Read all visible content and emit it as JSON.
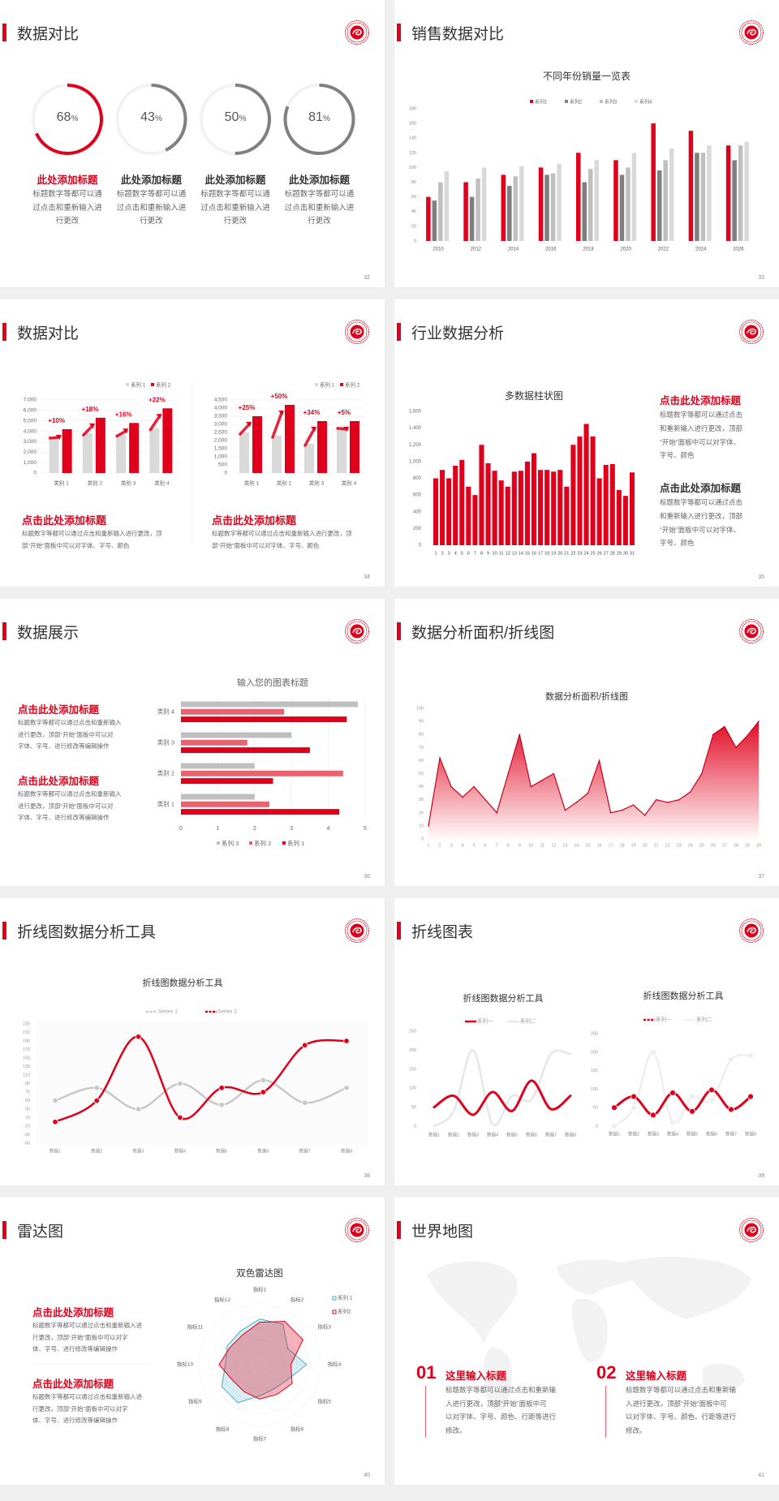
{
  "colors": {
    "accent": "#e0001b",
    "gray_dark": "#7f7f7f",
    "gray_mid": "#bfbfbf",
    "gray_light": "#d9d9d9",
    "pink": "#e8636f",
    "radar_blue": "#4bacc6"
  },
  "logo_icon": "red-circular-emblem",
  "s32": {
    "title": "数据对比",
    "page": "32",
    "rings": [
      {
        "value": 68,
        "unit": "%",
        "title": "此处添加标题",
        "body": [
          "标题数字等都可以通",
          "过点击和重新输入进",
          "行更改"
        ],
        "highlight": true
      },
      {
        "value": 43,
        "unit": "%",
        "title": "此处添加标题",
        "body": [
          "标题数字等都可以通",
          "过点击和重新输入进",
          "行更改"
        ],
        "highlight": false
      },
      {
        "value": 50,
        "unit": "%",
        "title": "此处添加标题",
        "body": [
          "标题数字等都可以通",
          "过点击和重新输入进",
          "行更改"
        ],
        "highlight": false
      },
      {
        "value": 81,
        "unit": "%",
        "title": "此处添加标题",
        "body": [
          "标题数字等都可以通",
          "过点击和重新输入进",
          "行更改"
        ],
        "highlight": false
      }
    ]
  },
  "s33": {
    "title": "销售数据对比",
    "page": "33"
  },
  "s34": {
    "title": "数据对比",
    "page": "34",
    "blocks": [
      {
        "heading": "点击此处添加标题",
        "body": [
          "标题数字等都可以通过点击和重新输入进行更改，顶",
          "部“开始”面板中可以对字体、字号、颜色"
        ]
      },
      {
        "heading": "点击此处添加标题",
        "body": [
          "标题数字等都可以通过点击和重新输入进行更改，顶",
          "部“开始”面板中可以对字体、字号、颜色"
        ]
      }
    ]
  },
  "s35": {
    "title": "行业数据分析",
    "page": "35",
    "blocks": [
      {
        "heading": "点击此处添加标题",
        "body": [
          "标题数字等都可以通过点击",
          "和重新输入进行更改，顶部",
          "“开始”面板中可以对字体、",
          "字号、颜色"
        ],
        "red": true
      },
      {
        "heading": "点击此处添加标题",
        "body": [
          "标题数字等都可以通过点击",
          "和重新输入进行更改，顶部",
          "“开始”面板中可以对字体、",
          "字号、颜色"
        ],
        "red": false
      }
    ]
  },
  "s36": {
    "title": "数据展示",
    "page": "36",
    "blocks": [
      {
        "heading": "点击此处添加标题",
        "body": [
          "标题数字等都可以通过点击和重新输入",
          "进行更改，顶部“开始”面板中可以对",
          "字体、字号、进行修改等编辑操作"
        ]
      },
      {
        "heading": "点击此处添加标题",
        "body": [
          "标题数字等都可以通过点击和重新输入",
          "进行更改，顶部“开始”面板中可以对",
          "字体、字号、进行修改等编辑操作"
        ]
      }
    ]
  },
  "s37": {
    "title": "数据分析面积/折线图",
    "page": "37"
  },
  "s38": {
    "title": "折线图数据分析工具",
    "page": "38"
  },
  "s39": {
    "title": "折线图表",
    "page": "39"
  },
  "s40": {
    "title": "雷达图",
    "page": "40",
    "blocks": [
      {
        "heading": "点击此处添加标题",
        "body": [
          "标题数字等都可以通过点击和重新输入进",
          "行更改，顶部“开始”面板中可以对字",
          "体、字号、进行修改等编辑操作"
        ]
      },
      {
        "heading": "点击此处添加标题",
        "body": [
          "标题数字等都可以通过点击和重新输入进",
          "行更改，顶部“开始”面板中可以对字",
          "体、字号、进行修改等编辑操作"
        ]
      }
    ]
  },
  "s41": {
    "title": "世界地图",
    "page": "41",
    "items": [
      {
        "number": "01",
        "heading": "这里输入标题",
        "body": [
          "标题数字等都可以通过点击和重新输",
          "入进行更改，顶部“开始”面板中可",
          "以对字体、字号、颜色、行距等进行",
          "修改。"
        ]
      },
      {
        "number": "02",
        "heading": "这里输入标题",
        "body": [
          "标题数字等都可以通过点击和重新输",
          "入进行更改，顶部“开始”面板中可",
          "以对字体、字号、颜色、行距等进行",
          "修改。"
        ]
      }
    ]
  },
  "chart_data": [
    {
      "type": "bar",
      "title": "不同年份销量一览表",
      "categories": [
        "2010",
        "2012",
        "2014",
        "2016",
        "2018",
        "2020",
        "2022",
        "2024",
        "2026"
      ],
      "series": [
        {
          "name": "系列1",
          "color": "#e0001b",
          "values": [
            60,
            80,
            90,
            100,
            120,
            110,
            160,
            150,
            130
          ]
        },
        {
          "name": "系列2",
          "color": "#7f7f7f",
          "values": [
            55,
            60,
            75,
            90,
            80,
            90,
            96,
            120,
            110
          ]
        },
        {
          "name": "系列3",
          "color": "#bfbfbf",
          "values": [
            80,
            85,
            88,
            92,
            98,
            100,
            110,
            120,
            130
          ]
        },
        {
          "name": "系列4",
          "color": "#d9d9d9",
          "values": [
            95,
            100,
            102,
            105,
            110,
            120,
            126,
            130,
            135
          ]
        }
      ],
      "yticks": [
        0,
        20,
        40,
        60,
        80,
        100,
        120,
        140,
        160,
        180
      ],
      "ylim": [
        0,
        180
      ],
      "legend": "top"
    },
    {
      "type": "bar",
      "categories": [
        "类别 1",
        "类别 2",
        "类别 3",
        "类别 4"
      ],
      "series": [
        {
          "name": "系列 1",
          "color": "#d9d9d9",
          "values": [
            3500,
            3800,
            3700,
            4300
          ]
        },
        {
          "name": "系列 2",
          "color": "#e0001b",
          "values": [
            4200,
            5300,
            4800,
            6200
          ]
        }
      ],
      "annotations": [
        "+10%",
        "+18%",
        "+16%",
        "+22%"
      ],
      "yticks": [
        "0",
        "1,000",
        "2,000",
        "3,000",
        "4,000",
        "5,000",
        "6,000",
        "7,000"
      ],
      "ylim": [
        0,
        7000
      ],
      "legend": "top-right",
      "grid": true
    },
    {
      "type": "bar",
      "categories": [
        "类别 1",
        "类别 2",
        "类别 3",
        "类别 4"
      ],
      "series": [
        {
          "name": "系列 1",
          "color": "#d9d9d9",
          "values": [
            2500,
            2300,
            1800,
            2850
          ]
        },
        {
          "name": "系列 2",
          "color": "#e0001b",
          "values": [
            3500,
            4200,
            3200,
            3200
          ]
        }
      ],
      "annotations": [
        "+25%",
        "+50%",
        "+34%",
        "+5%"
      ],
      "yticks": [
        "0",
        "500",
        "1,000",
        "1,500",
        "2,000",
        "2,500",
        "3,000",
        "3,500",
        "4,000",
        "4,500"
      ],
      "ylim": [
        0,
        4500
      ],
      "legend": "top-right",
      "grid": true
    },
    {
      "type": "bar",
      "title": "多数据柱状图",
      "categories": [
        "1",
        "2",
        "3",
        "4",
        "5",
        "6",
        "7",
        "8",
        "9",
        "10",
        "11",
        "12",
        "13",
        "14",
        "15",
        "16",
        "17",
        "18",
        "19",
        "20",
        "21",
        "22",
        "23",
        "24",
        "25",
        "26",
        "27",
        "28",
        "29",
        "30",
        "31"
      ],
      "values": [
        800,
        900,
        800,
        950,
        1020,
        700,
        600,
        1200,
        980,
        890,
        775,
        700,
        880,
        890,
        1000,
        1100,
        900,
        900,
        880,
        900,
        700,
        1200,
        1300,
        1450,
        1300,
        800,
        960,
        970,
        660,
        590,
        870
      ],
      "yticks": [
        "0",
        "200",
        "400",
        "600",
        "800",
        "1,000",
        "1,200",
        "1,400",
        "1,600"
      ],
      "ylim": [
        0,
        1600
      ]
    },
    {
      "type": "bar",
      "orientation": "horizontal",
      "title": "输入您的图表标题",
      "categories": [
        "类别 1",
        "类别 2",
        "类别 3",
        "类别 4"
      ],
      "series": [
        {
          "name": "系列 3",
          "color": "#bfbfbf",
          "values": [
            2,
            2,
            3,
            4.8
          ]
        },
        {
          "name": "系列 2",
          "color": "#e8636f",
          "values": [
            2.4,
            4.4,
            1.8,
            2.8
          ]
        },
        {
          "name": "系列 1",
          "color": "#e0001b",
          "values": [
            4.3,
            2.5,
            3.5,
            4.5
          ]
        }
      ],
      "xticks": [
        "0",
        "1",
        "2",
        "3",
        "4",
        "5"
      ],
      "xlim": [
        0,
        5
      ],
      "legend": "bottom",
      "grid": true
    },
    {
      "type": "area",
      "title": "数据分析面积/折线图",
      "x": [
        "1",
        "2",
        "3",
        "4",
        "5",
        "6",
        "7",
        "8",
        "9",
        "10",
        "11",
        "12",
        "13",
        "14",
        "15",
        "16",
        "17",
        "18",
        "19",
        "20",
        "21",
        "22",
        "23",
        "24",
        "25",
        "26",
        "27",
        "28",
        "29",
        "30"
      ],
      "values": [
        10,
        62,
        40,
        32,
        40,
        30,
        20,
        50,
        80,
        40,
        45,
        50,
        22,
        28,
        35,
        60,
        20,
        22,
        26,
        18,
        30,
        28,
        30,
        36,
        50,
        80,
        86,
        70,
        79,
        90
      ],
      "yticks": [
        "0",
        "10",
        "20",
        "30",
        "40",
        "50",
        "60",
        "70",
        "80",
        "90",
        "100"
      ],
      "ylim": [
        0,
        100
      ]
    },
    {
      "type": "line",
      "title": "折线图数据分析工具",
      "x": [
        "数据1",
        "数据2",
        "数据3",
        "数据4",
        "数据5",
        "数据6",
        "数据7",
        "数据8"
      ],
      "series": [
        {
          "name": "Series 1",
          "color": "#c8c8c8",
          "values": [
            50,
            80,
            30,
            90,
            40,
            98,
            45,
            80
          ]
        },
        {
          "name": "Series 2",
          "color": "#e0001b",
          "values": [
            0,
            50,
            200,
            10,
            80,
            70,
            180,
            190
          ]
        }
      ],
      "yticks": [
        "-50",
        "-30",
        "-10",
        "10",
        "30",
        "50",
        "70",
        "90",
        "110",
        "130",
        "150",
        "170",
        "190",
        "210",
        "230"
      ],
      "ylim": [
        -50,
        230
      ],
      "legend": "top",
      "smooth": true,
      "markers": true
    },
    {
      "type": "line",
      "title": "折线图数据分析工具",
      "x": [
        "数据1",
        "数据2",
        "数据3",
        "数据4",
        "数据5",
        "数据6",
        "数据7",
        "数据8"
      ],
      "series": [
        {
          "name": "系列一",
          "color": "#e0001b",
          "values": [
            50,
            80,
            30,
            90,
            40,
            120,
            45,
            80
          ]
        },
        {
          "name": "系列二",
          "color": "#e6e6e6",
          "values": [
            0,
            40,
            200,
            5,
            80,
            70,
            190,
            190
          ]
        }
      ],
      "yticks": [
        "0",
        "50",
        "100",
        "150",
        "200",
        "250"
      ],
      "ylim": [
        0,
        250
      ],
      "legend": "top",
      "smooth": true,
      "markers": false
    },
    {
      "type": "line",
      "title": "折线图数据分析工具",
      "x": [
        "数据1",
        "数据2",
        "数据3",
        "数据4",
        "数据5",
        "数据6",
        "数据7",
        "数据8"
      ],
      "series": [
        {
          "name": "系列一",
          "color": "#e0001b",
          "values": [
            50,
            80,
            30,
            90,
            40,
            98,
            45,
            80
          ]
        },
        {
          "name": "系列二",
          "color": "#eeeeee",
          "values": [
            0,
            50,
            200,
            10,
            80,
            70,
            180,
            190
          ]
        }
      ],
      "yticks": [
        "0",
        "50",
        "100",
        "150",
        "200",
        "250"
      ],
      "ylim": [
        0,
        250
      ],
      "legend": "top",
      "smooth": true,
      "markers": true
    },
    {
      "type": "radar",
      "title": "双色雷达图",
      "axes": [
        "指标1",
        "指标2",
        "指标3",
        "指标4",
        "指标5",
        "指标6",
        "指标7",
        "指标8",
        "指标9",
        "指标10",
        "指标11",
        "指标12"
      ],
      "series": [
        {
          "name": "系列 1",
          "color": "#4bacc6",
          "values": [
            73,
            75,
            52,
            75,
            50,
            45,
            50,
            70,
            70,
            55,
            60,
            62
          ]
        },
        {
          "name": "系列2",
          "color": "#e0001b",
          "values": [
            68,
            80,
            80,
            50,
            60,
            55,
            55,
            50,
            50,
            65,
            55,
            55
          ]
        }
      ],
      "max": 100,
      "legend": "top-right"
    }
  ]
}
